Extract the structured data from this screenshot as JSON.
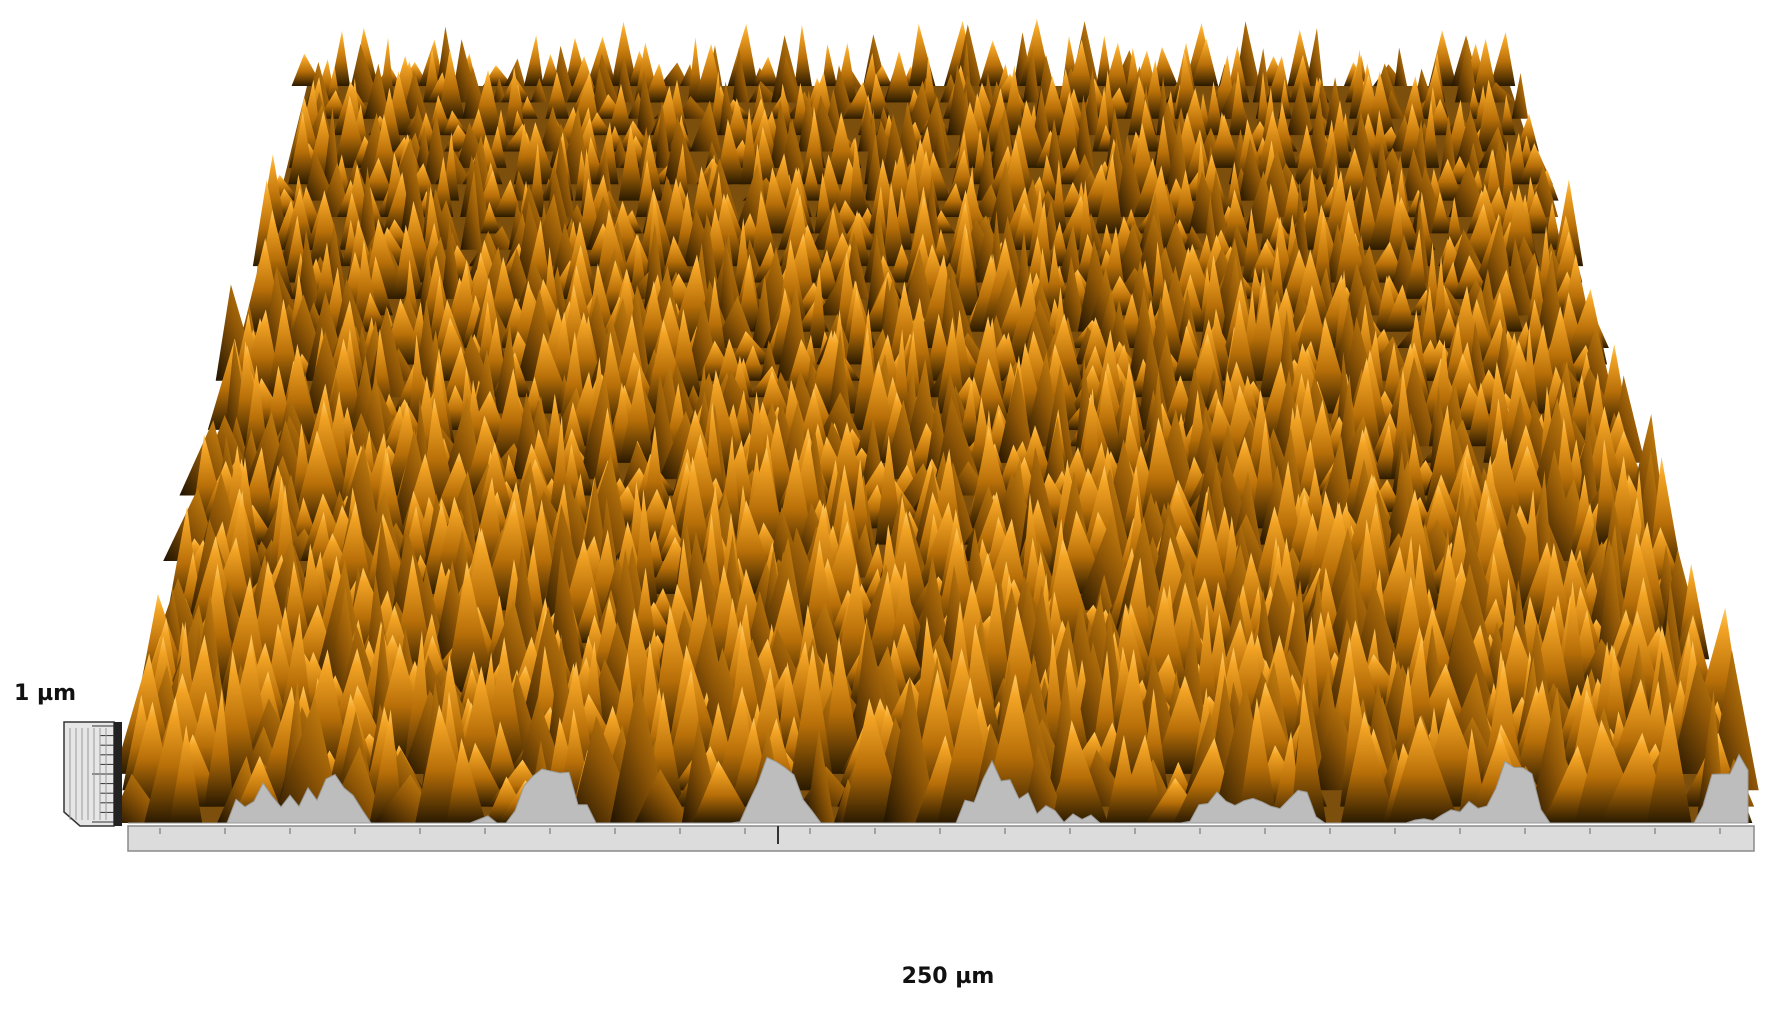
{
  "labels": {
    "z_scale": "1 µm",
    "x_scale": "250 µm"
  }
}
